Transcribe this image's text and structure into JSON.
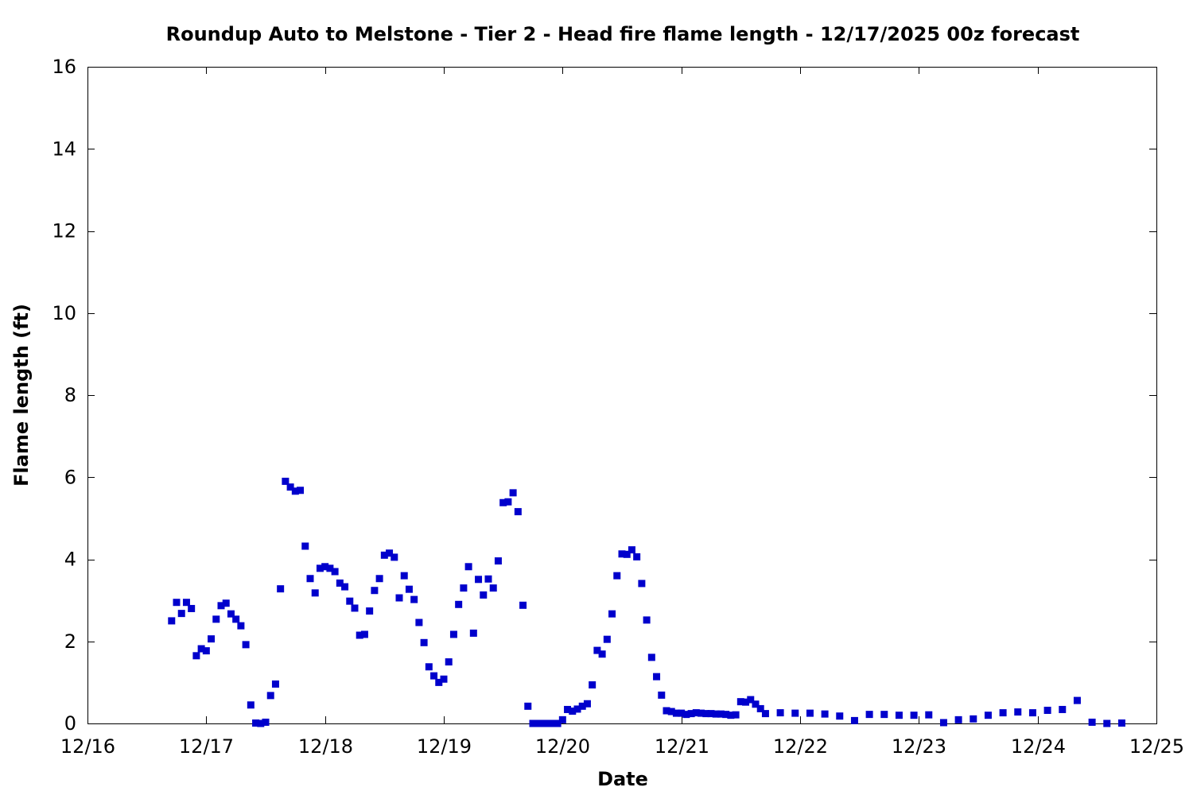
{
  "chart_data": {
    "type": "scatter",
    "title": "Roundup Auto to Melstone - Tier 2 - Head fire flame length - 12/17/2025 00z forecast",
    "xlabel": "Date",
    "ylabel": "Flame length (ft)",
    "xlim": [
      "2025-12-16",
      "2025-12-25"
    ],
    "ylim": [
      0,
      16
    ],
    "x_tick_labels": [
      "12/16",
      "12/17",
      "12/18",
      "12/19",
      "12/20",
      "12/21",
      "12/22",
      "12/23",
      "12/24",
      "12/25"
    ],
    "y_tick_labels": [
      "0",
      "2",
      "4",
      "6",
      "8",
      "10",
      "12",
      "14",
      "16"
    ],
    "grid": false,
    "legend": "none",
    "marker_color": "#0000cc",
    "series": [
      {
        "x": [
          "2025-12-16T17:00",
          "2025-12-16T18:00",
          "2025-12-16T19:00",
          "2025-12-16T20:00",
          "2025-12-16T21:00",
          "2025-12-16T22:00",
          "2025-12-16T23:00",
          "2025-12-17T00:00",
          "2025-12-17T01:00",
          "2025-12-17T02:00",
          "2025-12-17T03:00",
          "2025-12-17T04:00",
          "2025-12-17T05:00",
          "2025-12-17T06:00",
          "2025-12-17T07:00",
          "2025-12-17T08:00",
          "2025-12-17T09:00",
          "2025-12-17T10:00",
          "2025-12-17T11:00",
          "2025-12-17T12:00",
          "2025-12-17T13:00",
          "2025-12-17T14:00",
          "2025-12-17T15:00",
          "2025-12-17T16:00",
          "2025-12-17T17:00",
          "2025-12-17T18:00",
          "2025-12-17T19:00",
          "2025-12-17T20:00",
          "2025-12-17T21:00",
          "2025-12-17T22:00",
          "2025-12-17T23:00",
          "2025-12-18T00:00",
          "2025-12-18T01:00",
          "2025-12-18T02:00",
          "2025-12-18T03:00",
          "2025-12-18T04:00",
          "2025-12-18T05:00",
          "2025-12-18T06:00",
          "2025-12-18T07:00",
          "2025-12-18T08:00",
          "2025-12-18T09:00",
          "2025-12-18T10:00",
          "2025-12-18T11:00",
          "2025-12-18T12:00",
          "2025-12-18T13:00",
          "2025-12-18T14:00",
          "2025-12-18T15:00",
          "2025-12-18T16:00",
          "2025-12-18T17:00",
          "2025-12-18T18:00",
          "2025-12-18T19:00",
          "2025-12-18T20:00",
          "2025-12-18T21:00",
          "2025-12-18T22:00",
          "2025-12-18T23:00",
          "2025-12-19T00:00",
          "2025-12-19T01:00",
          "2025-12-19T02:00",
          "2025-12-19T03:00",
          "2025-12-19T04:00",
          "2025-12-19T05:00",
          "2025-12-19T06:00",
          "2025-12-19T07:00",
          "2025-12-19T08:00",
          "2025-12-19T09:00",
          "2025-12-19T10:00",
          "2025-12-19T11:00",
          "2025-12-19T12:00",
          "2025-12-19T13:00",
          "2025-12-19T14:00",
          "2025-12-19T15:00",
          "2025-12-19T16:00",
          "2025-12-19T17:00",
          "2025-12-19T18:00",
          "2025-12-19T19:00",
          "2025-12-19T20:00",
          "2025-12-19T21:00",
          "2025-12-19T22:00",
          "2025-12-19T23:00",
          "2025-12-20T00:00",
          "2025-12-20T01:00",
          "2025-12-20T02:00",
          "2025-12-20T03:00",
          "2025-12-20T04:00",
          "2025-12-20T05:00",
          "2025-12-20T06:00",
          "2025-12-20T07:00",
          "2025-12-20T08:00",
          "2025-12-20T09:00",
          "2025-12-20T10:00",
          "2025-12-20T11:00",
          "2025-12-20T12:00",
          "2025-12-20T13:00",
          "2025-12-20T14:00",
          "2025-12-20T15:00",
          "2025-12-20T16:00",
          "2025-12-20T17:00",
          "2025-12-20T18:00",
          "2025-12-20T19:00",
          "2025-12-20T20:00",
          "2025-12-20T21:00",
          "2025-12-20T22:00",
          "2025-12-20T23:00",
          "2025-12-21T00:00",
          "2025-12-21T01:00",
          "2025-12-21T02:00",
          "2025-12-21T03:00",
          "2025-12-21T04:00",
          "2025-12-21T05:00",
          "2025-12-21T06:00",
          "2025-12-21T07:00",
          "2025-12-21T08:00",
          "2025-12-21T09:00",
          "2025-12-21T10:00",
          "2025-12-21T11:00",
          "2025-12-21T12:00",
          "2025-12-21T13:00",
          "2025-12-21T14:00",
          "2025-12-21T15:00",
          "2025-12-21T16:00",
          "2025-12-21T17:00",
          "2025-12-21T20:00",
          "2025-12-21T23:00",
          "2025-12-22T02:00",
          "2025-12-22T05:00",
          "2025-12-22T08:00",
          "2025-12-22T11:00",
          "2025-12-22T14:00",
          "2025-12-22T17:00",
          "2025-12-22T20:00",
          "2025-12-22T23:00",
          "2025-12-23T02:00",
          "2025-12-23T05:00",
          "2025-12-23T08:00",
          "2025-12-23T11:00",
          "2025-12-23T14:00",
          "2025-12-23T17:00",
          "2025-12-23T20:00",
          "2025-12-23T23:00",
          "2025-12-24T02:00",
          "2025-12-24T05:00",
          "2025-12-24T08:00",
          "2025-12-24T11:00",
          "2025-12-24T14:00",
          "2025-12-24T17:00"
        ],
        "y": [
          2.5,
          2.95,
          2.68,
          2.95,
          2.8,
          1.65,
          1.82,
          1.77,
          2.06,
          2.54,
          2.87,
          2.93,
          2.67,
          2.54,
          2.38,
          1.92,
          0.45,
          0.01,
          0.0,
          0.03,
          0.68,
          0.96,
          3.28,
          5.9,
          5.76,
          5.66,
          5.68,
          4.32,
          3.53,
          3.18,
          3.78,
          3.82,
          3.78,
          3.7,
          3.42,
          3.33,
          2.98,
          2.81,
          2.15,
          2.17,
          2.74,
          3.24,
          3.53,
          4.1,
          4.15,
          4.05,
          3.06,
          3.6,
          3.27,
          3.02,
          2.46,
          1.97,
          1.38,
          1.16,
          1.0,
          1.08,
          1.5,
          2.17,
          2.9,
          3.3,
          3.82,
          2.2,
          3.51,
          3.13,
          3.52,
          3.3,
          3.96,
          5.38,
          5.4,
          5.62,
          5.16,
          2.88,
          0.42,
          0.0,
          0.0,
          0.0,
          0.0,
          0.0,
          0.0,
          0.09,
          0.34,
          0.3,
          0.35,
          0.42,
          0.48,
          0.94,
          1.78,
          1.69,
          2.05,
          2.67,
          3.6,
          4.13,
          4.12,
          4.23,
          4.06,
          3.41,
          2.52,
          1.61,
          1.14,
          0.69,
          0.31,
          0.29,
          0.25,
          0.25,
          0.22,
          0.24,
          0.26,
          0.25,
          0.24,
          0.24,
          0.23,
          0.23,
          0.22,
          0.2,
          0.21,
          0.53,
          0.52,
          0.58,
          0.47,
          0.36,
          0.24,
          0.26,
          0.25,
          0.25,
          0.23,
          0.18,
          0.07,
          0.22,
          0.22,
          0.2,
          0.2,
          0.21,
          0.02,
          0.09,
          0.11,
          0.2,
          0.26,
          0.28,
          0.26,
          0.32,
          0.34,
          0.56,
          0.03,
          0.0,
          0.01
        ]
      }
    ]
  }
}
